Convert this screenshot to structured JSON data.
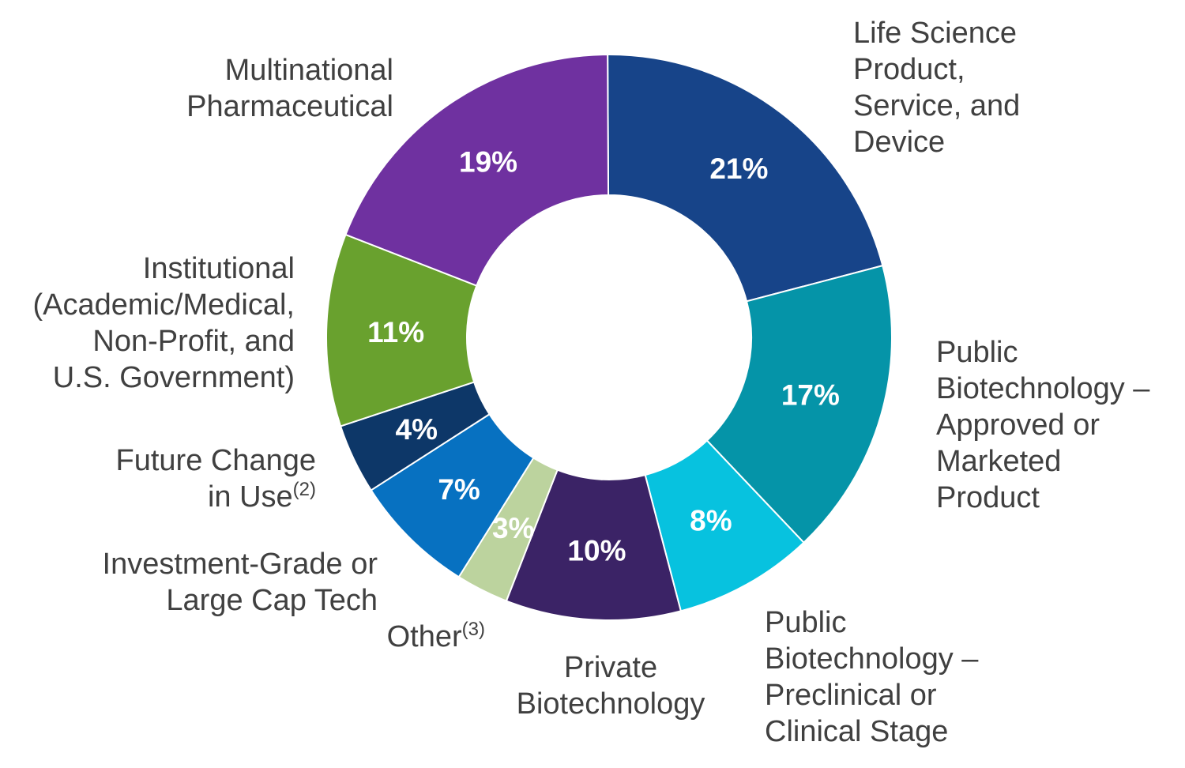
{
  "chart_data": {
    "type": "pie",
    "style": "donut",
    "title": "",
    "slices": [
      {
        "label": "Life Science Product, Service, and Device",
        "value": 21,
        "value_label": "21%",
        "color": "#174489",
        "label_lines": [
          "Life Science",
          "Product,",
          "Service, and",
          "Device"
        ]
      },
      {
        "label": "Public Biotechnology – Approved or Marketed Product",
        "value": 17,
        "value_label": "17%",
        "color": "#0594a8",
        "label_lines": [
          "Public",
          "Biotechnology –",
          "Approved or",
          "Marketed",
          "Product"
        ]
      },
      {
        "label": "Public Biotechnology – Preclinical or Clinical Stage",
        "value": 8,
        "value_label": "8%",
        "color": "#07c2df",
        "label_lines": [
          "Public",
          "Biotechnology –",
          "Preclinical or",
          "Clinical Stage"
        ]
      },
      {
        "label": "Private Biotechnology",
        "value": 10,
        "value_label": "10%",
        "color": "#3b2366",
        "label_lines": [
          "Private",
          "Biotechnology"
        ]
      },
      {
        "label": "Other(3)",
        "value": 3,
        "value_label": "3%",
        "color": "#bcd39e",
        "label_lines": [
          "Other"
        ],
        "label_sup": "(3)"
      },
      {
        "label": "Investment-Grade or Large Cap Tech",
        "value": 7,
        "value_label": "7%",
        "color": "#0771c1",
        "label_lines": [
          "Investment-Grade or",
          "Large Cap Tech"
        ]
      },
      {
        "label": "Future Change in Use(2)",
        "value": 4,
        "value_label": "4%",
        "color": "#0d3768",
        "label_lines": [
          "Future Change",
          "in Use"
        ],
        "label_sup": "(2)"
      },
      {
        "label": "Institutional (Academic/Medical, Non-Profit, and U.S. Government)",
        "value": 11,
        "value_label": "11%",
        "color": "#69a12e",
        "label_lines": [
          "Institutional",
          "(Academic/Medical,",
          "Non-Profit, and",
          "U.S. Government)"
        ]
      },
      {
        "label": "Multinational Pharmaceutical",
        "value": 19,
        "value_label": "19%",
        "color": "#6f31a0",
        "label_lines": [
          "Multinational",
          "Pharmaceutical"
        ]
      }
    ]
  }
}
